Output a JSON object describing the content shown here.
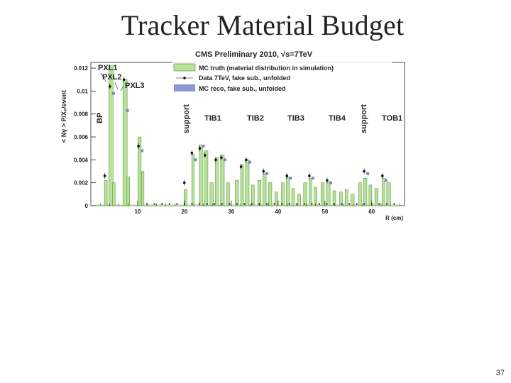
{
  "slide": {
    "title": "Tracker Material Budget",
    "page_number": "37"
  },
  "colors": {
    "mc_fill": "#b8e29a",
    "mc_line": "#4a8a2a",
    "data_marker": "#111111",
    "reco_marker": "#7a86c8",
    "axis": "#222222"
  },
  "chart_data": {
    "type": "bar",
    "title": "CMS Preliminary 2010, √s=7TeV",
    "xlabel": "R (cm)",
    "ylabel": "< Nγ > P/X₀/event",
    "xlim": [
      0,
      67
    ],
    "ylim": [
      0,
      0.0125
    ],
    "xticks": [
      "10",
      "20",
      "30",
      "40",
      "50",
      "60"
    ],
    "yticks": [
      "0",
      "0.002",
      "0.004",
      "0.006",
      "0.008",
      "0.01",
      "0.012"
    ],
    "grid": false,
    "legend": {
      "placement": "top-right",
      "entries": [
        {
          "label": "MC truth (material distribution in simulation)",
          "style": "fill"
        },
        {
          "label": "Data 7TeV, fake sub., unfolded",
          "style": "point"
        },
        {
          "label": "MC reco, fake sub., unfolded",
          "style": "fill-blue"
        }
      ]
    },
    "annotations": [
      "PXL1",
      "PXL2",
      "PXL3",
      "BP",
      "support",
      "TIB1",
      "TIB2",
      "TIB3",
      "TIB4",
      "support",
      "TOB1"
    ],
    "series": [
      {
        "name": "MC truth (material distribution in simulation)",
        "peaks": [
          {
            "x": 3.2,
            "w": 0.6,
            "y": 0.0022
          },
          {
            "x": 4.3,
            "w": 0.9,
            "y": 0.0122
          },
          {
            "x": 4.9,
            "w": 0.6,
            "y": 0.002
          },
          {
            "x": 7.3,
            "w": 0.9,
            "y": 0.011
          },
          {
            "x": 8.0,
            "w": 0.6,
            "y": 0.0025
          },
          {
            "x": 10.4,
            "w": 0.7,
            "y": 0.006
          },
          {
            "x": 11.1,
            "w": 0.5,
            "y": 0.003
          },
          {
            "x": 20.2,
            "w": 0.6,
            "y": 0.0014
          },
          {
            "x": 21.8,
            "w": 0.5,
            "y": 0.0045
          },
          {
            "x": 23.5,
            "w": 0.7,
            "y": 0.0053
          },
          {
            "x": 24.6,
            "w": 0.8,
            "y": 0.0048
          },
          {
            "x": 25.8,
            "w": 0.7,
            "y": 0.002
          },
          {
            "x": 26.9,
            "w": 0.6,
            "y": 0.0042
          },
          {
            "x": 28.1,
            "w": 0.8,
            "y": 0.0044
          },
          {
            "x": 29.3,
            "w": 0.6,
            "y": 0.002
          },
          {
            "x": 31.2,
            "w": 0.7,
            "y": 0.0022
          },
          {
            "x": 32.3,
            "w": 0.6,
            "y": 0.0036
          },
          {
            "x": 33.4,
            "w": 0.8,
            "y": 0.004
          },
          {
            "x": 34.6,
            "w": 0.6,
            "y": 0.0018
          },
          {
            "x": 36.0,
            "w": 0.7,
            "y": 0.0022
          },
          {
            "x": 37.1,
            "w": 0.7,
            "y": 0.0028
          },
          {
            "x": 38.3,
            "w": 0.7,
            "y": 0.002
          },
          {
            "x": 39.6,
            "w": 0.6,
            "y": 0.0012
          },
          {
            "x": 41.0,
            "w": 0.6,
            "y": 0.002
          },
          {
            "x": 42.1,
            "w": 0.7,
            "y": 0.0025
          },
          {
            "x": 43.2,
            "w": 0.6,
            "y": 0.0015
          },
          {
            "x": 44.5,
            "w": 0.6,
            "y": 0.001
          },
          {
            "x": 45.8,
            "w": 0.7,
            "y": 0.002
          },
          {
            "x": 46.9,
            "w": 0.6,
            "y": 0.0024
          },
          {
            "x": 48.0,
            "w": 0.6,
            "y": 0.0016
          },
          {
            "x": 49.5,
            "w": 0.7,
            "y": 0.002
          },
          {
            "x": 50.7,
            "w": 0.8,
            "y": 0.002
          },
          {
            "x": 52.0,
            "w": 0.6,
            "y": 0.0013
          },
          {
            "x": 53.4,
            "w": 0.6,
            "y": 0.0012
          },
          {
            "x": 54.6,
            "w": 0.6,
            "y": 0.0014
          },
          {
            "x": 55.9,
            "w": 0.7,
            "y": 0.001
          },
          {
            "x": 57.5,
            "w": 0.6,
            "y": 0.002
          },
          {
            "x": 58.6,
            "w": 0.7,
            "y": 0.0024
          },
          {
            "x": 59.7,
            "w": 0.6,
            "y": 0.0018
          },
          {
            "x": 61.0,
            "w": 0.7,
            "y": 0.0015
          },
          {
            "x": 62.5,
            "w": 0.6,
            "y": 0.0024
          },
          {
            "x": 63.6,
            "w": 0.8,
            "y": 0.002
          }
        ],
        "baseline": 0.0001
      },
      {
        "name": "Data 7TeV, fake sub., unfolded",
        "points": [
          [
            3.2,
            0.0026
          ],
          [
            4.3,
            0.0104
          ],
          [
            7.3,
            0.011
          ],
          [
            10.4,
            0.0052
          ],
          [
            20.2,
            0.002
          ],
          [
            21.8,
            0.0046
          ],
          [
            23.5,
            0.005
          ],
          [
            24.6,
            0.0044
          ],
          [
            26.9,
            0.004
          ],
          [
            28.1,
            0.0042
          ],
          [
            32.3,
            0.0034
          ],
          [
            33.4,
            0.004
          ],
          [
            37.1,
            0.003
          ],
          [
            42.1,
            0.0026
          ],
          [
            46.9,
            0.0026
          ],
          [
            50.7,
            0.0022
          ],
          [
            58.6,
            0.003
          ],
          [
            62.5,
            0.0026
          ]
        ]
      },
      {
        "name": "MC reco, fake sub., unfolded",
        "points": [
          [
            4.3,
            0.0098
          ],
          [
            7.3,
            0.0083
          ],
          [
            10.4,
            0.0048
          ],
          [
            21.8,
            0.004
          ],
          [
            23.5,
            0.0052
          ],
          [
            28.1,
            0.004
          ],
          [
            33.4,
            0.0038
          ],
          [
            37.1,
            0.0028
          ],
          [
            42.1,
            0.0024
          ],
          [
            46.9,
            0.0024
          ],
          [
            50.7,
            0.002
          ],
          [
            58.6,
            0.0028
          ],
          [
            62.5,
            0.0022
          ]
        ]
      }
    ]
  }
}
